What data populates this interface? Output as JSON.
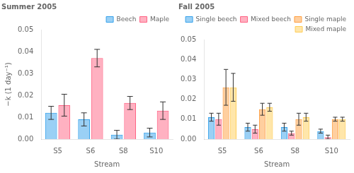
{
  "chart_data": [
    {
      "type": "bar",
      "title": "Summer 2005",
      "categories": [
        "S5",
        "S6",
        "S8",
        "S10"
      ],
      "series": [
        {
          "name": "Beech",
          "values": [
            0.012,
            0.009,
            0.002,
            0.003
          ],
          "errors": [
            0.003,
            0.003,
            0.002,
            0.002
          ]
        },
        {
          "name": "Maple",
          "values": [
            0.0155,
            0.037,
            0.0165,
            0.013
          ],
          "errors": [
            0.005,
            0.004,
            0.003,
            0.004
          ]
        }
      ],
      "ylim": [
        0.0,
        0.05
      ],
      "yticks": [
        {
          "value": 0,
          "label": "0.00"
        },
        0.01,
        0.02,
        0.03,
        0.04,
        0.05
      ],
      "ylabel": "−k (1 day⁻¹)",
      "xlabel": "Stream",
      "legend": "upper right",
      "grid": false
    },
    {
      "type": "bar",
      "title": "Fall 2005",
      "categories": [
        "S5",
        "S6",
        "S8",
        "S10"
      ],
      "series": [
        {
          "name": "Single beech",
          "values": [
            0.011,
            0.006,
            0.006,
            0.004
          ],
          "errors": [
            0.002,
            0.002,
            0.002,
            0.001
          ]
        },
        {
          "name": "Mixed beech",
          "values": [
            0.01,
            0.005,
            0.003,
            0.001
          ],
          "errors": [
            0.003,
            0.002,
            0.001,
            0.001
          ]
        },
        {
          "name": "Single maple",
          "values": [
            0.026,
            0.015,
            0.01,
            0.01
          ],
          "errors": [
            0.009,
            0.003,
            0.003,
            0.001
          ]
        },
        {
          "name": "Mixed maple",
          "values": [
            0.026,
            0.016,
            0.011,
            0.01
          ],
          "errors": [
            0.007,
            0.002,
            0.002,
            0.001
          ]
        }
      ],
      "ylim": [
        0.0,
        0.05
      ],
      "yticks": [
        {
          "value": 0,
          "label": "0.00"
        },
        0.01,
        0.02,
        0.03,
        0.04,
        0.05
      ],
      "xlabel": "Stream",
      "legend": "upper right",
      "grid": false
    }
  ]
}
